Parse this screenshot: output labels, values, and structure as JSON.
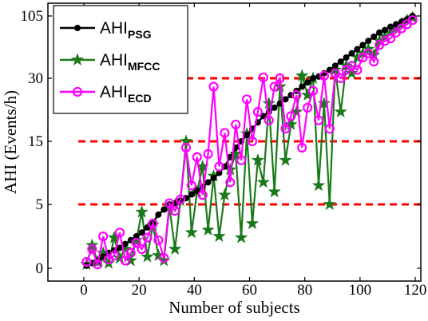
{
  "chart_data": {
    "type": "line",
    "title": "",
    "xlabel": "Number of subjects",
    "ylabel": "AHI (Events/h)",
    "xlim": [
      -13,
      122
    ],
    "x_ticks": [
      0,
      20,
      40,
      60,
      80,
      100,
      120
    ],
    "y_tick_labels": [
      "0",
      "5",
      "15",
      "30",
      "105"
    ],
    "y_scale": "nonlinear (tick labels 0, 5, 15, 30, 105 evenly spaced)",
    "grid": false,
    "legend_position": "top-left",
    "thresholds": [
      5,
      15,
      30
    ],
    "threshold_color": "#ff0000",
    "series": [
      {
        "name": "AHI",
        "name_sub": "PSG",
        "color": "#000000",
        "marker": "circle",
        "x": [
          1,
          3,
          5,
          7,
          9,
          11,
          13,
          15,
          17,
          19,
          21,
          23,
          25,
          27,
          29,
          31,
          33,
          35,
          37,
          39,
          41,
          43,
          45,
          47,
          49,
          51,
          53,
          55,
          57,
          59,
          61,
          63,
          65,
          67,
          69,
          71,
          73,
          75,
          77,
          79,
          81,
          83,
          85,
          87,
          89,
          91,
          93,
          95,
          97,
          99,
          101,
          103,
          105,
          107,
          109,
          111,
          113,
          115,
          117,
          119
        ],
        "y": [
          0.2,
          0.4,
          0.6,
          0.9,
          1.2,
          1.4,
          1.6,
          1.9,
          2.2,
          2.5,
          2.8,
          3.2,
          3.6,
          4.2,
          4.6,
          5,
          5.2,
          5.6,
          6,
          6.6,
          7.2,
          7.8,
          8.5,
          9.2,
          10,
          11,
          12.5,
          14,
          15,
          16.5,
          18,
          19.5,
          21,
          22,
          23,
          24,
          25,
          26,
          27,
          28,
          29,
          30,
          32,
          36,
          40,
          45,
          50,
          55,
          60,
          65,
          70,
          75,
          80,
          85,
          88,
          92,
          95,
          98,
          101,
          105
        ]
      },
      {
        "name": "AHI",
        "name_sub": "MFCC",
        "color": "#1a7a1a",
        "marker": "star",
        "x": [
          1,
          3,
          5,
          7,
          9,
          11,
          13,
          15,
          17,
          19,
          21,
          23,
          25,
          27,
          29,
          31,
          33,
          35,
          37,
          39,
          41,
          43,
          45,
          47,
          49,
          51,
          53,
          55,
          57,
          59,
          61,
          63,
          65,
          67,
          69,
          71,
          73,
          75,
          77,
          79,
          81,
          83,
          85,
          87,
          89,
          91,
          93,
          95,
          97,
          99,
          101,
          103,
          105,
          107,
          109,
          111,
          113,
          115,
          117,
          119
        ],
        "y": [
          0.3,
          1.8,
          0.5,
          1.2,
          0.4,
          2.4,
          0.8,
          1.5,
          0.6,
          2.2,
          4.4,
          0.9,
          3.4,
          1,
          0.6,
          4.8,
          1.5,
          5.6,
          15,
          2.8,
          7,
          11,
          3,
          9.5,
          2.5,
          6.5,
          10.5,
          13,
          2.4,
          16.8,
          3.5,
          12,
          8.5,
          24,
          7,
          28,
          12,
          19,
          22,
          33,
          26,
          30,
          8,
          24,
          5,
          40,
          22,
          45,
          36,
          55,
          60,
          65,
          58,
          75,
          80,
          85,
          90,
          95,
          100,
          103
        ]
      },
      {
        "name": "AHI",
        "name_sub": "ECD",
        "color": "#ff00ff",
        "marker": "circle-open",
        "x": [
          1,
          3,
          5,
          7,
          9,
          11,
          13,
          15,
          17,
          19,
          21,
          23,
          25,
          27,
          29,
          31,
          33,
          35,
          37,
          39,
          41,
          43,
          45,
          47,
          49,
          51,
          53,
          55,
          57,
          59,
          61,
          63,
          65,
          67,
          69,
          71,
          73,
          75,
          77,
          79,
          81,
          83,
          85,
          87,
          89,
          91,
          93,
          95,
          97,
          99,
          101,
          103,
          105,
          107,
          109,
          111,
          113,
          115,
          117,
          119
        ],
        "y": [
          0.5,
          1.5,
          0.3,
          2.5,
          0.7,
          1,
          2.8,
          0.6,
          1.2,
          2,
          1.5,
          2.4,
          3.5,
          2.2,
          0.8,
          5.2,
          4.5,
          5.8,
          14,
          8,
          12.5,
          6.5,
          13,
          28,
          11,
          17,
          8.5,
          19,
          12,
          25,
          15,
          22,
          31,
          20,
          28,
          30,
          18,
          21,
          26,
          14,
          23,
          27,
          20,
          33,
          18,
          36,
          30,
          40,
          45,
          40,
          55,
          60,
          50,
          70,
          75,
          78,
          85,
          90,
          95,
          100
        ]
      }
    ]
  }
}
